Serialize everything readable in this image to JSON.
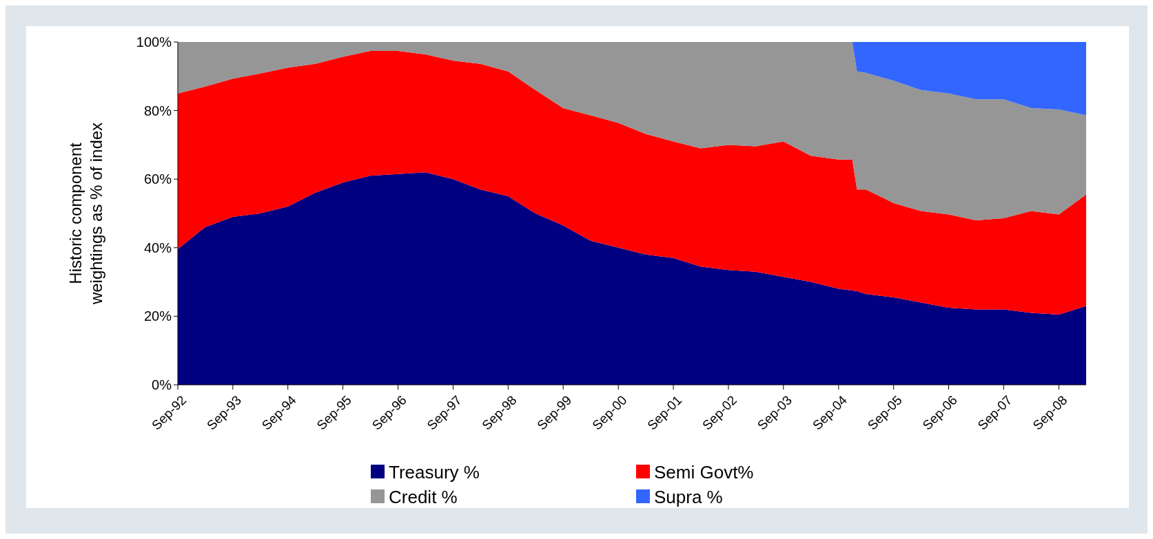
{
  "chart_data": {
    "type": "area",
    "stacked": true,
    "ylabel": "Historic component\nweightings as % of index",
    "legend": "bottom",
    "x": [
      "1992-09",
      "1993-03",
      "1993-09",
      "1994-03",
      "1994-09",
      "1995-03",
      "1995-09",
      "1996-03",
      "1996-09",
      "1997-03",
      "1997-09",
      "1998-03",
      "1998-09",
      "1999-03",
      "1999-09",
      "2000-03",
      "2000-09",
      "2001-03",
      "2001-09",
      "2002-03",
      "2002-09",
      "2003-03",
      "2003-09",
      "2004-03",
      "2004-09",
      "2004-12",
      "2005-01",
      "2005-03",
      "2005-09",
      "2006-03",
      "2006-09",
      "2007-03",
      "2007-09",
      "2008-03",
      "2008-09",
      "2009-03"
    ],
    "xlim": [
      "1992-09",
      "2009-03"
    ],
    "xticks": [
      {
        "value": "1992-09",
        "label": "Sep-92"
      },
      {
        "value": "1993-09",
        "label": "Sep-93"
      },
      {
        "value": "1994-09",
        "label": "Sep-94"
      },
      {
        "value": "1995-09",
        "label": "Sep-95"
      },
      {
        "value": "1996-09",
        "label": "Sep-96"
      },
      {
        "value": "1997-09",
        "label": "Sep-97"
      },
      {
        "value": "1998-09",
        "label": "Sep-98"
      },
      {
        "value": "1999-09",
        "label": "Sep-99"
      },
      {
        "value": "2000-09",
        "label": "Sep-00"
      },
      {
        "value": "2001-09",
        "label": "Sep-01"
      },
      {
        "value": "2002-09",
        "label": "Sep-02"
      },
      {
        "value": "2003-09",
        "label": "Sep-03"
      },
      {
        "value": "2004-09",
        "label": "Sep-04"
      },
      {
        "value": "2005-09",
        "label": "Sep-05"
      },
      {
        "value": "2006-09",
        "label": "Sep-06"
      },
      {
        "value": "2007-09",
        "label": "Sep-07"
      },
      {
        "value": "2008-09",
        "label": "Sep-08"
      }
    ],
    "ylim": [
      0,
      100
    ],
    "yticks": [
      {
        "value": 0,
        "label": "0%"
      },
      {
        "value": 20,
        "label": "20%"
      },
      {
        "value": 40,
        "label": "40%"
      },
      {
        "value": 60,
        "label": "60%"
      },
      {
        "value": 80,
        "label": "80%"
      },
      {
        "value": 100,
        "label": "100%"
      }
    ],
    "series": [
      {
        "name": "Treasury %",
        "color": "#000080",
        "values": [
          39.6,
          46,
          49,
          50,
          52,
          56,
          59,
          61,
          61.5,
          62,
          60,
          57,
          55,
          50,
          46.5,
          42,
          40,
          38,
          37,
          34.5,
          33.5,
          33,
          31.5,
          30,
          28,
          27.5,
          27.3,
          26.5,
          25.5,
          24,
          22.5,
          22,
          22,
          21,
          20.5,
          23
        ]
      },
      {
        "name": "Semi Govt%",
        "color": "#ff0000",
        "values": [
          45.4,
          41,
          40.3,
          40.8,
          40.5,
          37.6,
          36.7,
          36.4,
          35.9,
          34.4,
          34.6,
          36.6,
          36.4,
          36,
          34.2,
          36.6,
          36.4,
          35.2,
          34,
          34.5,
          36.5,
          36.6,
          39.5,
          36.8,
          37.7,
          38.2,
          29.7,
          30.5,
          27.5,
          26.7,
          27.2,
          26,
          26.6,
          29.7,
          29.2,
          32.5
        ]
      },
      {
        "name": "Credit %",
        "color": "#969696",
        "values": [
          15,
          13,
          10.7,
          9.2,
          7.5,
          6.4,
          4.3,
          2.6,
          2.6,
          3.6,
          5.4,
          6.4,
          8.6,
          14,
          19.3,
          21.4,
          23.6,
          26.8,
          29,
          31,
          30,
          30.4,
          29,
          33.2,
          34.3,
          34.3,
          34.4,
          34,
          35.7,
          35.3,
          35.3,
          35.3,
          34.7,
          30,
          30.6,
          23.1
        ]
      },
      {
        "name": "Supra %",
        "color": "#3366ff",
        "values": [
          0,
          0,
          0,
          0,
          0,
          0,
          0,
          0,
          0,
          0,
          0,
          0,
          0,
          0,
          0,
          0,
          0,
          0,
          0,
          0,
          0,
          0,
          0,
          0,
          0,
          0,
          8.6,
          9,
          11.3,
          14,
          15,
          16.7,
          16.7,
          19.3,
          19.7,
          21.4
        ]
      }
    ]
  }
}
